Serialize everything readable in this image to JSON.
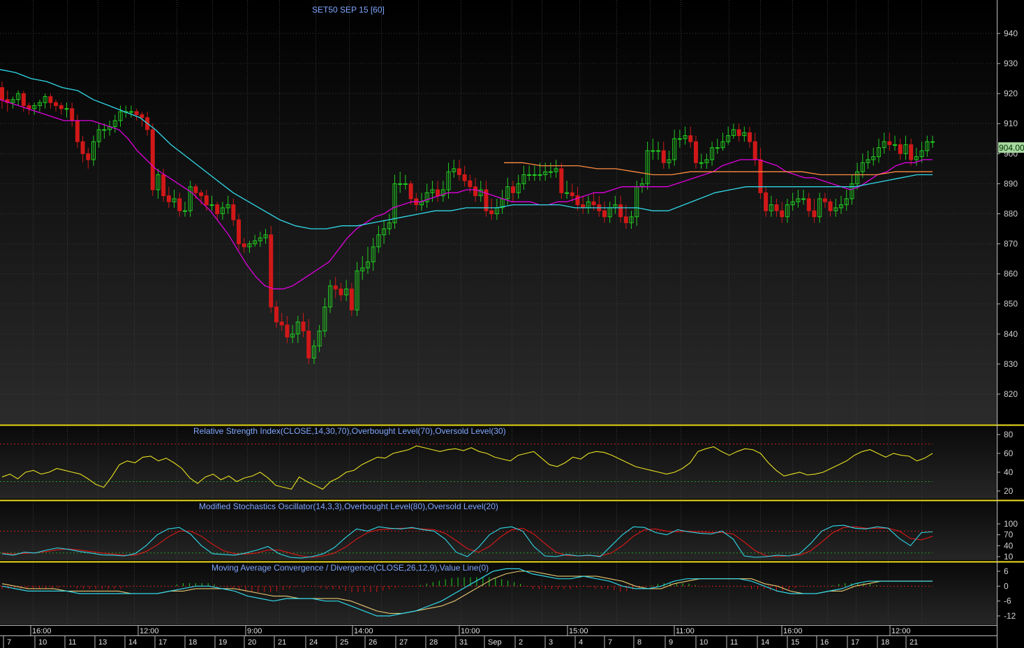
{
  "chart_data": {
    "type": "candlestick",
    "title": "SET50 SEP 15   [60]",
    "last_price": "904.00",
    "price_axis": {
      "ticks": [
        820,
        830,
        840,
        850,
        860,
        870,
        880,
        890,
        900,
        910,
        920,
        930,
        940
      ]
    },
    "candles": {
      "open": [
        922,
        918,
        917,
        918,
        920,
        916,
        915,
        916,
        917,
        919,
        917,
        916,
        915,
        915,
        911,
        904,
        900,
        898,
        904,
        908,
        908,
        909,
        911,
        914,
        914,
        914,
        913,
        912,
        908,
        888,
        893,
        886,
        884,
        885,
        881,
        881,
        889,
        887,
        886,
        883,
        883,
        880,
        882,
        883,
        878,
        870,
        869,
        870,
        871,
        872,
        873,
        849,
        844,
        843,
        839,
        840,
        844,
        841,
        832,
        836,
        841,
        849,
        856,
        855,
        853,
        855,
        848,
        861,
        862,
        864,
        869,
        873,
        875,
        877,
        890,
        890,
        890,
        885,
        883,
        884,
        887,
        888,
        886,
        888,
        894,
        895,
        893,
        891,
        889,
        886,
        888,
        881,
        880,
        882,
        885,
        889,
        887,
        890,
        893,
        893,
        893,
        893,
        894,
        894,
        895,
        887,
        887,
        886,
        883,
        882,
        884,
        883,
        881,
        879,
        882,
        883,
        879,
        877,
        879,
        889,
        890,
        901,
        901,
        901,
        897,
        898,
        905,
        905,
        906,
        904,
        897,
        897,
        898,
        902,
        902,
        904,
        906,
        908,
        906,
        907,
        904,
        898,
        887,
        881,
        883,
        881,
        879,
        883,
        884,
        885,
        885,
        881,
        879,
        885,
        884,
        881,
        882,
        883,
        885,
        890,
        894,
        897,
        898,
        899,
        902,
        904,
        903,
        903,
        900,
        903,
        898,
        899,
        901,
        904
      ],
      "close": [
        918,
        917,
        918,
        920,
        916,
        915,
        916,
        917,
        919,
        917,
        916,
        915,
        915,
        911,
        904,
        900,
        898,
        904,
        908,
        908,
        909,
        911,
        914,
        914,
        914,
        913,
        912,
        908,
        888,
        893,
        886,
        884,
        885,
        881,
        881,
        889,
        887,
        886,
        883,
        883,
        880,
        882,
        883,
        878,
        870,
        869,
        870,
        871,
        872,
        873,
        849,
        844,
        843,
        839,
        840,
        844,
        841,
        832,
        836,
        841,
        849,
        856,
        855,
        853,
        855,
        848,
        861,
        862,
        864,
        869,
        873,
        875,
        877,
        890,
        890,
        890,
        885,
        883,
        884,
        887,
        888,
        886,
        888,
        894,
        895,
        893,
        891,
        889,
        886,
        888,
        881,
        880,
        882,
        885,
        889,
        887,
        890,
        893,
        893,
        893,
        893,
        894,
        894,
        895,
        887,
        887,
        886,
        883,
        882,
        884,
        883,
        881,
        879,
        882,
        883,
        879,
        877,
        879,
        889,
        890,
        901,
        901,
        901,
        897,
        898,
        905,
        905,
        906,
        904,
        897,
        897,
        898,
        902,
        902,
        904,
        906,
        908,
        906,
        907,
        904,
        898,
        887,
        881,
        883,
        881,
        879,
        883,
        884,
        885,
        885,
        881,
        879,
        885,
        884,
        881,
        882,
        883,
        885,
        890,
        894,
        897,
        898,
        899,
        902,
        904,
        903,
        903,
        900,
        903,
        898,
        899,
        901,
        904,
        904
      ],
      "high": [
        924,
        921,
        919,
        921,
        921,
        917,
        917,
        918,
        920,
        920,
        918,
        917,
        917,
        917,
        913,
        906,
        902,
        906,
        910,
        910,
        911,
        913,
        916,
        916,
        916,
        915,
        914,
        914,
        910,
        895,
        895,
        889,
        888,
        887,
        884,
        891,
        890,
        888,
        888,
        886,
        884,
        884,
        886,
        885,
        880,
        872,
        871,
        873,
        874,
        875,
        876,
        851,
        847,
        846,
        843,
        846,
        847,
        845,
        838,
        843,
        852,
        858,
        859,
        857,
        858,
        857,
        864,
        866,
        869,
        872,
        876,
        878,
        880,
        893,
        894,
        893,
        891,
        887,
        887,
        890,
        891,
        891,
        891,
        897,
        898,
        898,
        896,
        893,
        892,
        891,
        891,
        885,
        885,
        888,
        892,
        891,
        893,
        896,
        896,
        896,
        897,
        897,
        897,
        898,
        897,
        891,
        890,
        889,
        886,
        886,
        887,
        886,
        884,
        884,
        886,
        886,
        883,
        881,
        891,
        892,
        904,
        905,
        904,
        904,
        901,
        908,
        908,
        909,
        909,
        906,
        900,
        900,
        904,
        905,
        907,
        909,
        910,
        910,
        909,
        909,
        907,
        902,
        889,
        886,
        885,
        884,
        885,
        887,
        888,
        888,
        887,
        885,
        887,
        887,
        885,
        885,
        886,
        888,
        893,
        897,
        900,
        901,
        902,
        905,
        907,
        907,
        906,
        905,
        906,
        905,
        902,
        904,
        906,
        906
      ],
      "low": [
        915,
        914,
        915,
        916,
        914,
        913,
        913,
        914,
        915,
        915,
        914,
        913,
        912,
        909,
        902,
        897,
        895,
        896,
        902,
        905,
        906,
        907,
        909,
        912,
        912,
        911,
        909,
        906,
        886,
        885,
        884,
        882,
        882,
        879,
        879,
        879,
        885,
        883,
        881,
        881,
        878,
        878,
        880,
        876,
        868,
        867,
        867,
        869,
        869,
        870,
        847,
        842,
        841,
        837,
        837,
        837,
        839,
        830,
        830,
        834,
        839,
        847,
        852,
        851,
        851,
        846,
        846,
        858,
        860,
        861,
        867,
        870,
        873,
        875,
        887,
        888,
        883,
        881,
        881,
        882,
        884,
        884,
        884,
        885,
        892,
        891,
        889,
        887,
        884,
        884,
        879,
        878,
        878,
        880,
        883,
        884,
        885,
        888,
        891,
        891,
        891,
        891,
        892,
        892,
        885,
        885,
        884,
        881,
        880,
        880,
        881,
        879,
        877,
        877,
        880,
        877,
        875,
        875,
        876,
        887,
        888,
        898,
        898,
        895,
        895,
        896,
        902,
        903,
        902,
        895,
        895,
        895,
        896,
        900,
        901,
        903,
        905,
        904,
        904,
        902,
        896,
        885,
        879,
        879,
        879,
        877,
        877,
        881,
        882,
        883,
        879,
        877,
        877,
        882,
        879,
        879,
        880,
        881,
        883,
        888,
        892,
        895,
        896,
        897,
        900,
        901,
        901,
        898,
        898,
        896,
        896,
        897,
        899,
        902
      ]
    },
    "overlays": [
      {
        "name": "MA short",
        "color": "#e000e0",
        "values": [
          918,
          917,
          916,
          915,
          914,
          913,
          912,
          911,
          911,
          911,
          911,
          910,
          909,
          908,
          905,
          901,
          898,
          895,
          893,
          891,
          889,
          887,
          884,
          881,
          877,
          873,
          868,
          863,
          859,
          856,
          855,
          855,
          856,
          858,
          860,
          862,
          864,
          868,
          872,
          875,
          877,
          879,
          880,
          882,
          883,
          884,
          884,
          885,
          886,
          887,
          887,
          888,
          888,
          887,
          886,
          885,
          884,
          884,
          884,
          883,
          883,
          884,
          884,
          885,
          886,
          887,
          887,
          888,
          889,
          889,
          889,
          889,
          889,
          889,
          890,
          891,
          892,
          893,
          894,
          896,
          897,
          898,
          898,
          898,
          897,
          896,
          894,
          893,
          892,
          892,
          891,
          890,
          889,
          888,
          889,
          891,
          893,
          894,
          896,
          897,
          897,
          898,
          898
        ]
      },
      {
        "name": "MA mid",
        "color": "#30d8e8",
        "values": [
          928,
          927,
          925,
          924,
          922,
          921,
          918,
          916,
          914,
          912,
          908,
          903,
          899,
          895,
          891,
          887,
          884,
          881,
          878,
          876,
          875,
          875,
          876,
          876,
          877,
          878,
          879,
          880,
          881,
          881,
          882,
          882,
          882,
          883,
          883,
          883,
          883,
          882,
          882,
          882,
          882,
          882,
          881,
          881,
          883,
          885,
          887,
          888,
          889,
          889,
          889,
          889,
          889,
          889,
          889,
          889,
          890,
          891,
          892,
          893,
          893
        ]
      },
      {
        "name": "MA long",
        "color": "#ff8c40",
        "values": [
          897,
          897,
          896,
          896,
          896,
          895,
          895,
          894,
          893,
          893,
          894,
          894,
          894,
          894,
          894,
          894,
          894,
          893,
          893,
          893,
          893,
          894,
          894,
          894
        ]
      }
    ],
    "rsi": {
      "label": "Relative Strength Index(CLOSE,14,30,70),Overbought Level(70),Oversold Level(30)",
      "ticks": [
        20,
        40,
        60,
        80
      ],
      "overbought": 70,
      "oversold": 30,
      "values": [
        35,
        38,
        33,
        40,
        42,
        38,
        40,
        44,
        42,
        40,
        38,
        33,
        27,
        24,
        35,
        48,
        52,
        50,
        56,
        57,
        52,
        55,
        50,
        44,
        34,
        28,
        35,
        38,
        32,
        36,
        30,
        34,
        36,
        40,
        34,
        26,
        24,
        22,
        35,
        30,
        26,
        22,
        30,
        34,
        40,
        42,
        48,
        52,
        56,
        55,
        60,
        62,
        64,
        68,
        66,
        64,
        62,
        64,
        65,
        63,
        66,
        62,
        60,
        56,
        54,
        52,
        58,
        60,
        62,
        55,
        48,
        46,
        50,
        56,
        54,
        60,
        62,
        61,
        58,
        54,
        50,
        46,
        44,
        42,
        40,
        38,
        40,
        44,
        50,
        62,
        65,
        67,
        62,
        58,
        62,
        65,
        64,
        60,
        50,
        42,
        36,
        38,
        40,
        37,
        38,
        40,
        44,
        48,
        52,
        58,
        62,
        64,
        60,
        56,
        60,
        58,
        57,
        52,
        55,
        60
      ]
    },
    "stochastic": {
      "label": "Modified Stochastics Oscillator(14,3,3),Overbought Level(80),Oversold Level(20)",
      "ticks": [
        10,
        40,
        70,
        100
      ],
      "overbought": 80,
      "oversold": 20,
      "k": [
        18,
        14,
        22,
        20,
        28,
        34,
        30,
        24,
        20,
        15,
        14,
        12,
        18,
        40,
        70,
        86,
        90,
        72,
        40,
        18,
        16,
        14,
        20,
        28,
        38,
        18,
        8,
        6,
        10,
        18,
        35,
        62,
        86,
        80,
        92,
        88,
        86,
        90,
        84,
        80,
        58,
        22,
        10,
        35,
        70,
        88,
        92,
        80,
        38,
        12,
        10,
        16,
        12,
        14,
        10,
        40,
        70,
        92,
        90,
        76,
        70,
        84,
        78,
        74,
        72,
        80,
        58,
        12,
        8,
        10,
        14,
        12,
        18,
        46,
        80,
        94,
        96,
        88,
        86,
        92,
        88,
        60,
        40,
        76,
        78
      ],
      "d": [
        20,
        17,
        19,
        21,
        24,
        29,
        31,
        28,
        24,
        20,
        17,
        14,
        14,
        24,
        42,
        64,
        80,
        80,
        66,
        44,
        26,
        18,
        17,
        20,
        28,
        28,
        20,
        12,
        8,
        12,
        20,
        36,
        58,
        76,
        84,
        86,
        88,
        88,
        86,
        84,
        74,
        54,
        32,
        22,
        38,
        64,
        84,
        88,
        72,
        46,
        22,
        13,
        12,
        13,
        12,
        20,
        40,
        66,
        84,
        86,
        80,
        78,
        80,
        78,
        76,
        76,
        72,
        50,
        26,
        12,
        10,
        12,
        14,
        26,
        50,
        76,
        90,
        92,
        88,
        88,
        88,
        80,
        60,
        56,
        66
      ]
    },
    "macd": {
      "label": "Moving Average Convergence / Divergence(CLOSE,26,12,9),Value Line(0)",
      "ticks": [
        -12,
        -6,
        0,
        6
      ],
      "macd_values": [
        0,
        -1,
        -2,
        -2,
        -2,
        -2,
        -3,
        -3,
        -3,
        -3,
        -3,
        -3,
        -3,
        -2,
        -1,
        0,
        0,
        -1,
        -2,
        -4,
        -5,
        -6,
        -5,
        -5,
        -5,
        -6,
        -6,
        -8,
        -10,
        -12,
        -12,
        -11,
        -10,
        -8,
        -6,
        -3,
        0,
        3,
        6,
        7,
        7,
        5,
        4,
        3,
        3,
        4,
        3,
        2,
        0,
        -1,
        -1,
        0,
        2,
        3,
        3,
        3,
        3,
        3,
        2,
        0,
        -2,
        -3,
        -3,
        -3,
        -2,
        -1,
        1,
        2,
        2,
        2,
        2,
        2,
        2
      ],
      "signal_values": [
        1,
        0,
        -1,
        -1,
        -1,
        -2,
        -2,
        -2,
        -2,
        -2,
        -3,
        -3,
        -3,
        -2,
        -2,
        -1,
        -1,
        -1,
        -1,
        -2,
        -3,
        -4,
        -4,
        -5,
        -5,
        -5,
        -5,
        -6,
        -8,
        -10,
        -11,
        -11,
        -10,
        -9,
        -8,
        -6,
        -3,
        0,
        3,
        5,
        6,
        6,
        5,
        4,
        4,
        4,
        4,
        3,
        2,
        0,
        -1,
        -1,
        1,
        2,
        3,
        3,
        3,
        3,
        3,
        1,
        0,
        -2,
        -3,
        -3,
        -2,
        -2,
        0,
        1,
        2,
        2,
        2,
        2,
        2
      ]
    },
    "x_time_labels": [
      "16:00",
      "12:00",
      "9:00",
      "14:00",
      "10:00",
      "15:00",
      "11:00",
      "16:00",
      "12:00"
    ],
    "x_day_labels": [
      "7",
      "10",
      "11",
      "13",
      "14",
      "17",
      "18",
      "19",
      "20",
      "21",
      "24",
      "25",
      "26",
      "27",
      "28",
      "31",
      "Sep",
      "2",
      "3",
      "4",
      "7",
      "8",
      "9",
      "10",
      "11",
      "14",
      "15",
      "16",
      "17",
      "18",
      "21"
    ],
    "colors": {
      "up": "#22cc22",
      "down": "#d01818",
      "rsi": "#e8e020",
      "stoch_k": "#30d8e8",
      "stoch_d": "#e01818",
      "macd": "#30d8e8",
      "signal": "#e8c870",
      "panel_border": "#f0e020",
      "title": "#7fa7ff",
      "overbought_line": "#c82020",
      "oversold_line": "#20a020"
    }
  }
}
